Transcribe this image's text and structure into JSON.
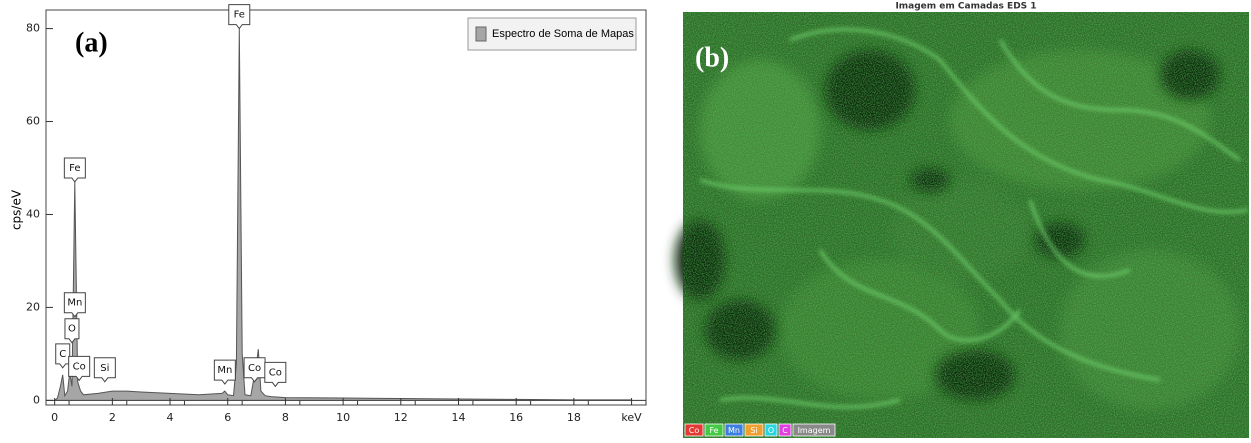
{
  "chart_data": {
    "type": "area",
    "panel_label": "(a)",
    "y_label": "cps/eV",
    "x": [
      0,
      0.1,
      0.2,
      0.28,
      0.35,
      0.45,
      0.52,
      0.6,
      0.7,
      0.8,
      0.9,
      1.0,
      1.5,
      2.0,
      2.5,
      3,
      4,
      5,
      5.8,
      5.9,
      6.0,
      6.2,
      6.3,
      6.4,
      6.5,
      6.6,
      6.8,
      7.0,
      7.06,
      7.15,
      7.3,
      7.5,
      8,
      10,
      12,
      14,
      16,
      18,
      20
    ],
    "series": [
      {
        "name": "Espectro de Soma de Mapas",
        "color": "#a6a6a6",
        "values": [
          0,
          0.5,
          3,
          5.5,
          1,
          2,
          6,
          3,
          47,
          4,
          2,
          1.2,
          1.5,
          2,
          2,
          1.8,
          1.5,
          1.2,
          1.5,
          2,
          1.2,
          1,
          8,
          80,
          10,
          1.2,
          1,
          8,
          11,
          2,
          1,
          0.8,
          0.6,
          0.5,
          0.4,
          0.3,
          0.2,
          0.1,
          0.1
        ]
      }
    ],
    "xlim": [
      -0.3,
      20.5
    ],
    "ylim": [
      -1,
      84
    ],
    "xticks": [
      0,
      2,
      4,
      6,
      8,
      10,
      12,
      14,
      16,
      18,
      {
        "value": 20,
        "label": "keV"
      }
    ],
    "yticks": [
      0,
      20,
      40,
      60,
      80
    ],
    "grid": false,
    "legend": "upper right",
    "peak_labels": [
      {
        "text": "Fe",
        "x": 6.4,
        "y": 80
      },
      {
        "text": "Fe",
        "x": 0.7,
        "y": 47
      },
      {
        "text": "Mn",
        "x": 0.7,
        "y": 18
      },
      {
        "text": "O",
        "x": 0.6,
        "y": 12.4
      },
      {
        "text": "C",
        "x": 0.28,
        "y": 7
      },
      {
        "text": "Co",
        "x": 0.85,
        "y": 4.3
      },
      {
        "text": "Si",
        "x": 1.74,
        "y": 4
      },
      {
        "text": "Mn",
        "x": 5.9,
        "y": 3.5
      },
      {
        "text": "Co",
        "x": 6.93,
        "y": 4
      },
      {
        "text": "Co",
        "x": 7.65,
        "y": 3
      }
    ]
  },
  "image_panel": {
    "title": "Imagem em Camadas EDS 1",
    "label": "(b)",
    "legend": [
      {
        "text": "Co",
        "color": "#e53935"
      },
      {
        "text": "Fe",
        "color": "#43c943"
      },
      {
        "text": "Mn",
        "color": "#3d7fe0"
      },
      {
        "text": "Si",
        "color": "#f0a030"
      },
      {
        "text": "O",
        "color": "#2ad4e0"
      },
      {
        "text": "C",
        "color": "#e040e0"
      },
      {
        "text": "Imagem",
        "color": "#8a8a8a"
      }
    ]
  }
}
